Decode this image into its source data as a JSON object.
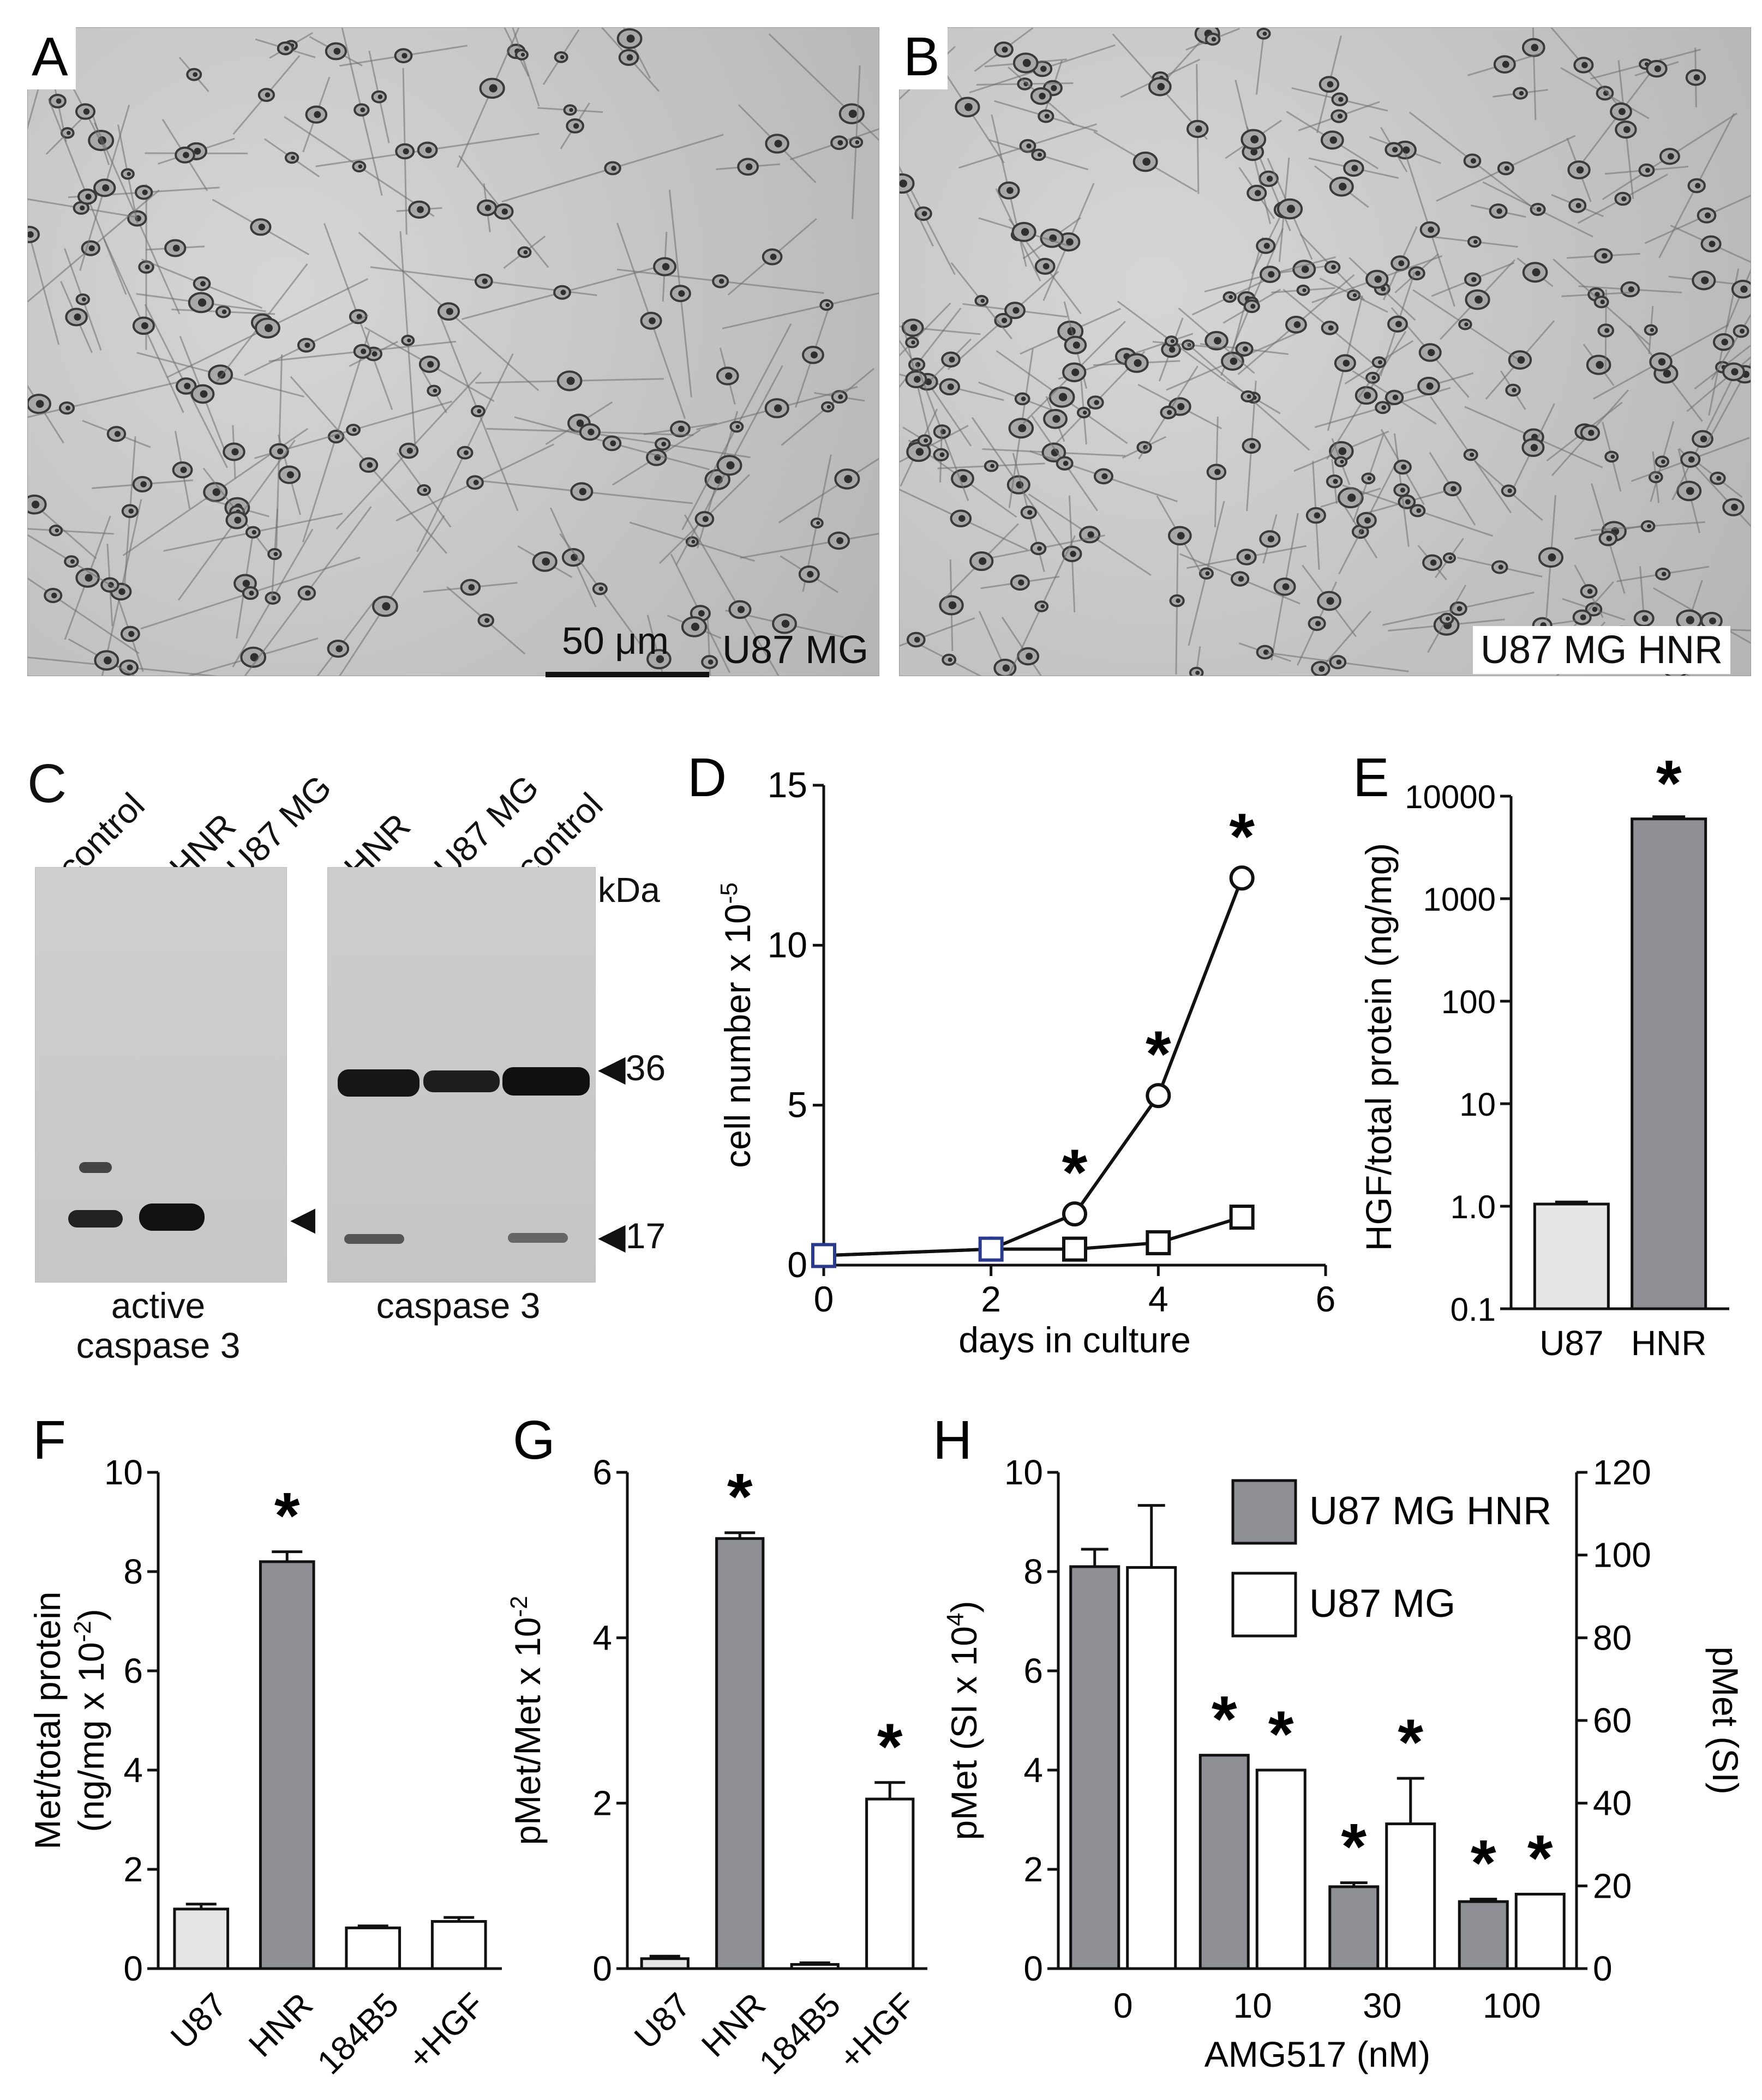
{
  "panels": {
    "A": {
      "letter": "A",
      "cell_line": "U87 MG",
      "scale_bar": "50 μm"
    },
    "B": {
      "letter": "B",
      "cell_line": "U87 MG HNR"
    },
    "C": {
      "letter": "C",
      "left_blot": {
        "lanes": [
          "control",
          "HNR",
          "U87 MG"
        ],
        "caption": "active caspase 3"
      },
      "right_blot": {
        "lanes": [
          "HNR",
          "U87 MG",
          "control"
        ],
        "caption": "caspase 3",
        "unit": "kDa",
        "markers": [
          "◀36",
          "◀17"
        ]
      }
    }
  },
  "chart_data": [
    {
      "panel": "D",
      "type": "line",
      "xlabel": "days in culture",
      "ylabel": "cell number x 10",
      "ylabel_exp": "-5",
      "xlim": [
        0,
        6
      ],
      "ylim": [
        0,
        15
      ],
      "xticks": [
        "0",
        "2",
        "4",
        "6"
      ],
      "yticks": [
        "0",
        "5",
        "10",
        "15"
      ],
      "series": [
        {
          "marker": "circle",
          "x": [
            0,
            2,
            3,
            4,
            5
          ],
          "y": [
            0.3,
            0.5,
            1.6,
            5.3,
            12.1
          ]
        },
        {
          "marker": "square",
          "x": [
            0,
            2,
            3,
            4,
            5
          ],
          "y": [
            0.3,
            0.5,
            0.5,
            0.7,
            1.5
          ]
        }
      ],
      "annotations": [
        {
          "x": 3,
          "y": 1.6,
          "text": "*"
        },
        {
          "x": 4,
          "y": 5.3,
          "text": "*"
        },
        {
          "x": 5,
          "y": 12.1,
          "text": "*"
        }
      ]
    },
    {
      "panel": "E",
      "type": "bar",
      "scale": "log",
      "ylabel": "HGF/total protein (ng/mg)",
      "ylim": [
        0.1,
        10000
      ],
      "yticks": [
        "0.1",
        "1.0",
        "10",
        "100",
        "1000",
        "10000"
      ],
      "categories": [
        "U87",
        "HNR"
      ],
      "values": [
        1.05,
        6000
      ],
      "errors": [
        0.05,
        300
      ],
      "colors": [
        "#e6e6e6",
        "#8e9096"
      ],
      "annotations": [
        "",
        "*"
      ]
    },
    {
      "panel": "F",
      "type": "bar",
      "ylabel": "Met/total protein",
      "ylabel2": "(ng/mg x 10",
      "ylabel2_exp": "-2",
      "ylabel2_end": ")",
      "ylim": [
        0,
        10
      ],
      "yticks": [
        "0",
        "2",
        "4",
        "6",
        "8",
        "10"
      ],
      "categories": [
        "U87",
        "HNR",
        "184B5",
        "+HGF"
      ],
      "values": [
        1.2,
        8.2,
        0.82,
        0.95
      ],
      "errors": [
        0.1,
        0.2,
        0.04,
        0.08
      ],
      "colors": [
        "#e6e6e6",
        "#8e9096",
        "#ffffff",
        "#ffffff"
      ],
      "annotations": [
        "",
        "*",
        "",
        ""
      ]
    },
    {
      "panel": "G",
      "type": "bar",
      "ylabel": "pMet/Met x 10",
      "ylabel_exp": "-2",
      "ylim": [
        0,
        6
      ],
      "yticks": [
        "0",
        "2",
        "4",
        "6"
      ],
      "categories": [
        "U87",
        "HNR",
        "184B5",
        "+HGF"
      ],
      "values": [
        0.12,
        5.2,
        0.05,
        2.05
      ],
      "errors": [
        0.03,
        0.07,
        0.02,
        0.2
      ],
      "colors": [
        "#e6e6e6",
        "#8e9096",
        "#ffffff",
        "#ffffff"
      ],
      "annotations": [
        "",
        "*",
        "",
        "*"
      ]
    },
    {
      "panel": "H",
      "type": "bar",
      "xlabel": "AMG517 (nM)",
      "ylabel": "pMet (SI x 10",
      "ylabel_exp": "4",
      "ylabel_end": ")",
      "y2label": "pMet (SI)",
      "ylim": [
        0,
        10
      ],
      "y2lim": [
        0,
        120
      ],
      "yticks": [
        "0",
        "2",
        "4",
        "6",
        "8",
        "10"
      ],
      "y2ticks": [
        "0",
        "20",
        "40",
        "60",
        "80",
        "100",
        "120"
      ],
      "categories": [
        "0",
        "10",
        "30",
        "100"
      ],
      "legend_position": "top-right",
      "series": [
        {
          "name": "U87 MG HNR",
          "axis": "left",
          "color": "#8e9096",
          "values": [
            8.1,
            4.3,
            1.65,
            1.35
          ],
          "errors": [
            0.35,
            0,
            0.08,
            0.05
          ],
          "annotations": [
            "",
            "*",
            "*",
            "*"
          ]
        },
        {
          "name": "U87 MG",
          "axis": "right",
          "color": "#ffffff",
          "values": [
            97,
            48,
            35,
            18
          ],
          "errors": [
            15,
            0,
            11,
            0
          ],
          "annotations": [
            "",
            "*",
            "*",
            "*"
          ]
        }
      ]
    }
  ]
}
